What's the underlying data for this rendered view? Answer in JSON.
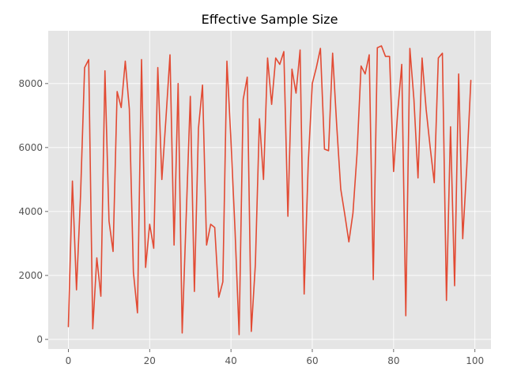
{
  "chart_data": {
    "type": "line",
    "title": "Effective Sample Size",
    "xlabel": "",
    "ylabel": "",
    "xlim": [
      -4.95,
      103.95
    ],
    "ylim": [
      -300,
      9650
    ],
    "x_ticks": [
      0,
      20,
      40,
      60,
      80,
      100
    ],
    "x_tick_labels": [
      "0",
      "20",
      "40",
      "60",
      "80",
      "100"
    ],
    "y_ticks": [
      0,
      2000,
      4000,
      6000,
      8000
    ],
    "y_tick_labels": [
      "0",
      "2000",
      "4000",
      "6000",
      "8000"
    ],
    "grid": true,
    "legend": "none",
    "colors": {
      "line": "#E24A33",
      "plot_background": "#E5E5E5",
      "grid": "#FFFFFF",
      "tick_text": "#555555",
      "title": "#000000"
    },
    "series": [
      {
        "x": [
          0,
          1,
          2,
          3,
          4,
          5,
          6,
          7,
          8,
          9,
          10,
          11,
          12,
          13,
          14,
          15,
          16,
          17,
          18,
          19,
          20,
          21,
          22,
          23,
          24,
          25,
          26,
          27,
          28,
          29,
          30,
          31,
          32,
          33,
          34,
          35,
          36,
          37,
          38,
          39,
          40,
          41,
          42,
          43,
          44,
          45,
          46,
          47,
          48,
          49,
          50,
          51,
          52,
          53,
          54,
          55,
          56,
          57,
          58,
          59,
          60,
          61,
          62,
          63,
          64,
          65,
          66,
          67,
          68,
          69,
          70,
          71,
          72,
          73,
          74,
          75,
          76,
          77,
          78,
          79,
          80,
          81,
          82,
          83,
          84,
          85,
          86,
          87,
          88,
          89,
          90,
          91,
          92,
          93,
          94,
          95,
          96,
          97,
          98,
          99
        ],
        "values": [
          400,
          4950,
          1550,
          4500,
          8500,
          8750,
          330,
          2550,
          1350,
          8400,
          3700,
          2750,
          7750,
          7250,
          8700,
          7200,
          2100,
          830,
          8750,
          2250,
          3600,
          2850,
          8500,
          5000,
          6900,
          8900,
          2950,
          8000,
          200,
          3900,
          7600,
          1500,
          6600,
          7950,
          2950,
          3600,
          3500,
          1320,
          1800,
          8700,
          6200,
          3400,
          150,
          7500,
          8200,
          250,
          2350,
          6900,
          5000,
          8800,
          7350,
          8800,
          8600,
          9000,
          3850,
          8450,
          7700,
          9050,
          1420,
          5500,
          8000,
          8500,
          9100,
          5950,
          5900,
          8950,
          6700,
          4700,
          3900,
          3050,
          3950,
          5800,
          8550,
          8300,
          8900,
          1870,
          9120,
          9180,
          8850,
          8850,
          5250,
          7100,
          8600,
          740,
          9100,
          7500,
          5050,
          8800,
          7200,
          6000,
          4900,
          8800,
          8950,
          1220,
          6650,
          1680,
          8300,
          3150,
          5400,
          8100
        ]
      }
    ]
  }
}
